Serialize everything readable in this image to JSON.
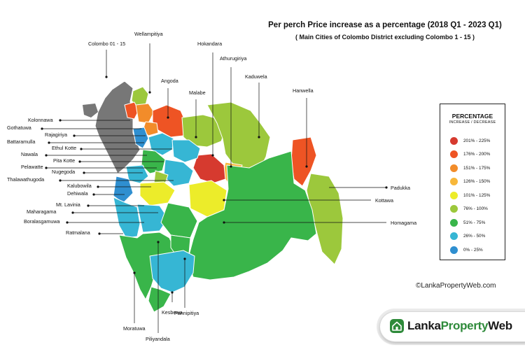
{
  "title": "Per perch Price increase as a percentage (2018 Q1 - 2023 Q1)",
  "subtitle": "( Main Cities of Colombo District excluding Colombo 1 - 15 )",
  "legend": {
    "title": "PERCENTAGE",
    "subtitle": "INCREASE / DECREASE",
    "items": [
      {
        "label": "201% - 225%",
        "color": "#d63a2f"
      },
      {
        "label": "176% - 200%",
        "color": "#ee5424"
      },
      {
        "label": "151% - 175%",
        "color": "#f28c2a"
      },
      {
        "label": "126% - 150%",
        "color": "#f7b73a"
      },
      {
        "label": "101% - 125%",
        "color": "#ecec2a"
      },
      {
        "label": "76% - 100%",
        "color": "#9cc83c"
      },
      {
        "label": "51% - 75%",
        "color": "#39b54a"
      },
      {
        "label": "26% - 50%",
        "color": "#36b6d4"
      },
      {
        "label": "0% - 25%",
        "color": "#2f8fd0"
      }
    ]
  },
  "labels": {
    "colombo": "Colombo 01 - 15",
    "wellampitiya": "Wellampitiya",
    "hokandara": "Hokandara",
    "athurugiriya": "Athurugiriya",
    "kaduwela": "Kaduwela",
    "angoda": "Angoda",
    "malabe": "Malabe",
    "hanwella": "Hanwella",
    "kolonnawa": "Kolonnawa",
    "gothatuwa": "Gothatuwa",
    "rajagiriya": "Rajagiriya",
    "battaramulla": "Battaramulla",
    "ethul_kotte": "Ethul Kotte",
    "nawala": "Nawala",
    "pita_kotte": "Pita Kotte",
    "pelawatte": "Pelawatte",
    "nugegoda": "Nugegoda",
    "thalawathugoda": "Thalawathugoda",
    "kalubowila": "Kalubowila",
    "dehiwala": "Dehiwala",
    "mt_lavinia": "Mt. Lavinia",
    "maharagama": "Maharagama",
    "boralasgamuwa": "Boralasgamuwa",
    "ratmalana": "Ratmalana",
    "padukka": "Padukka",
    "kottawa": "Kottawa",
    "homagama": "Homagama",
    "kesbewa": "Kesbewa",
    "moratuwa": "Moratuwa",
    "pannipitiya": "Pannipitiya",
    "piliyandala": "Piliyandala"
  },
  "copyright": "©LankaPropertyWeb.com",
  "brand": {
    "part1": "Lanka",
    "part2": "Property",
    "part3": "Web"
  }
}
